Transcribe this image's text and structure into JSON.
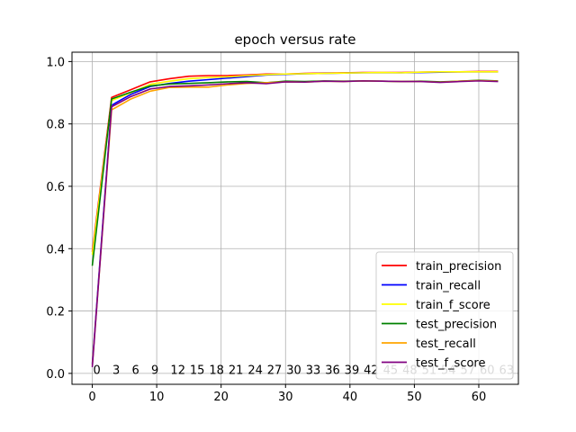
{
  "chart_data": {
    "type": "line",
    "title": "epoch versus rate",
    "xlabel": "",
    "ylabel": "",
    "xlim": [
      -3.15,
      66.15
    ],
    "ylim": [
      -0.035,
      1.03
    ],
    "xticks": [
      0,
      10,
      20,
      30,
      40,
      50,
      60
    ],
    "yticks": [
      0.0,
      0.2,
      0.4,
      0.6,
      0.8,
      1.0
    ],
    "xtick_labels": [
      "0",
      "10",
      "20",
      "30",
      "40",
      "50",
      "60"
    ],
    "ytick_labels": [
      "0.0",
      "0.2",
      "0.4",
      "0.6",
      "0.8",
      "1.0"
    ],
    "grid": true,
    "legend_position": "bottom-right",
    "x": [
      0,
      3,
      6,
      9,
      12,
      15,
      18,
      21,
      24,
      27,
      30,
      33,
      36,
      39,
      42,
      45,
      48,
      51,
      54,
      57,
      60,
      63
    ],
    "series": [
      {
        "name": "train_precision",
        "color": "#ff0000",
        "values": [
          0.39,
          0.885,
          0.91,
          0.935,
          0.945,
          0.953,
          0.955,
          0.955,
          0.957,
          0.96,
          0.96,
          0.962,
          0.963,
          0.964,
          0.965,
          0.965,
          0.965,
          0.966,
          0.967,
          0.967,
          0.968,
          0.968
        ]
      },
      {
        "name": "train_recall",
        "color": "#0000ff",
        "values": [
          0.03,
          0.86,
          0.895,
          0.92,
          0.93,
          0.937,
          0.942,
          0.947,
          0.952,
          0.957,
          0.959,
          0.961,
          0.962,
          0.963,
          0.964,
          0.964,
          0.964,
          0.965,
          0.966,
          0.967,
          0.967,
          0.967
        ]
      },
      {
        "name": "train_f_score",
        "color": "#ffff00",
        "values": [
          0.38,
          0.875,
          0.9,
          0.927,
          0.937,
          0.945,
          0.949,
          0.951,
          0.955,
          0.958,
          0.96,
          0.961,
          0.962,
          0.963,
          0.964,
          0.965,
          0.964,
          0.966,
          0.967,
          0.967,
          0.967,
          0.967
        ]
      },
      {
        "name": "test_precision",
        "color": "#008000",
        "values": [
          0.345,
          0.88,
          0.902,
          0.922,
          0.928,
          0.93,
          0.932,
          0.935,
          0.936,
          0.932,
          0.937,
          0.936,
          0.938,
          0.937,
          0.938,
          0.937,
          0.936,
          0.937,
          0.935,
          0.937,
          0.94,
          0.938
        ]
      },
      {
        "name": "test_recall",
        "color": "#ffa500",
        "values": [
          0.025,
          0.845,
          0.88,
          0.905,
          0.917,
          0.918,
          0.918,
          0.925,
          0.93,
          0.932,
          0.935,
          0.934,
          0.937,
          0.936,
          0.938,
          0.937,
          0.936,
          0.936,
          0.934,
          0.937,
          0.939,
          0.937
        ]
      },
      {
        "name": "test_f_score",
        "color": "#800080",
        "values": [
          0.02,
          0.855,
          0.888,
          0.912,
          0.92,
          0.922,
          0.925,
          0.929,
          0.932,
          0.929,
          0.935,
          0.934,
          0.937,
          0.936,
          0.938,
          0.937,
          0.936,
          0.936,
          0.933,
          0.936,
          0.938,
          0.936
        ]
      }
    ],
    "annotations": {
      "y": 0.012,
      "items": [
        {
          "x": 0,
          "text": "0"
        },
        {
          "x": 3,
          "text": "3"
        },
        {
          "x": 6,
          "text": "6"
        },
        {
          "x": 9,
          "text": "9"
        },
        {
          "x": 12,
          "text": "12"
        },
        {
          "x": 15,
          "text": "15"
        },
        {
          "x": 18,
          "text": "18"
        },
        {
          "x": 21,
          "text": "21"
        },
        {
          "x": 24,
          "text": "24"
        },
        {
          "x": 27,
          "text": "27"
        },
        {
          "x": 30,
          "text": "30"
        },
        {
          "x": 33,
          "text": "33"
        },
        {
          "x": 36,
          "text": "36"
        },
        {
          "x": 39,
          "text": "39"
        },
        {
          "x": 42,
          "text": "42"
        },
        {
          "x": 45,
          "text": "45"
        },
        {
          "x": 48,
          "text": "48"
        },
        {
          "x": 51,
          "text": "51"
        },
        {
          "x": 54,
          "text": "54"
        },
        {
          "x": 57,
          "text": "57"
        },
        {
          "x": 60,
          "text": "60"
        },
        {
          "x": 63,
          "text": "63"
        }
      ]
    }
  }
}
